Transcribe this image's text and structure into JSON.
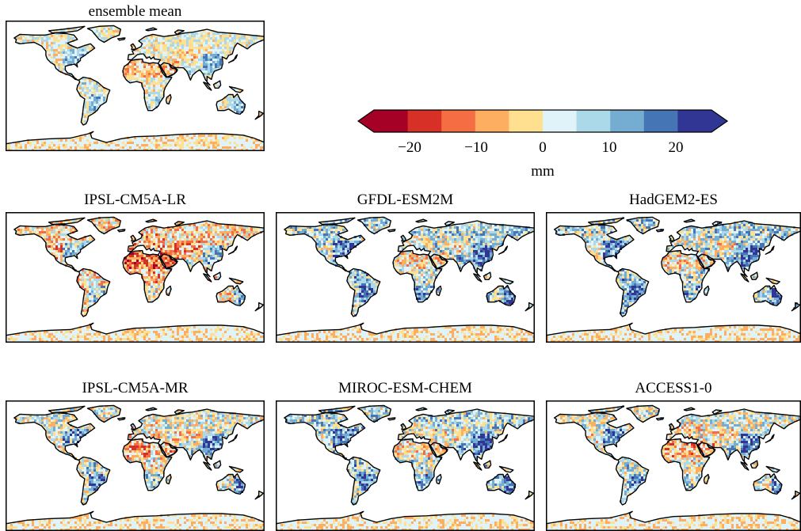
{
  "colorbar": {
    "unit": "mm",
    "ticks": [
      {
        "label": "−20",
        "value": -20
      },
      {
        "label": "−10",
        "value": -10
      },
      {
        "label": "0",
        "value": 0
      },
      {
        "label": "10",
        "value": 10
      },
      {
        "label": "20",
        "value": 20
      }
    ],
    "range": [
      -25,
      25
    ],
    "extend": "both",
    "colors": [
      "#a50026",
      "#d73027",
      "#f46d43",
      "#fdae61",
      "#fee090",
      "#e0f3f8",
      "#abd9e9",
      "#74add1",
      "#4575b4",
      "#313695"
    ],
    "extend_min_color": "#a50026",
    "extend_max_color": "#313695"
  },
  "panels": [
    {
      "title": "ensemble mean",
      "profile": "mean"
    },
    {
      "title": "IPSL-CM5A-LR",
      "profile": "dry"
    },
    {
      "title": "GFDL-ESM2M",
      "profile": "wet"
    },
    {
      "title": "HadGEM2-ES",
      "profile": "wet"
    },
    {
      "title": "IPSL-CM5A-MR",
      "profile": "mixed"
    },
    {
      "title": "MIROC-ESM-CHEM",
      "profile": "wet"
    },
    {
      "title": "ACCESS1-0",
      "profile": "mixed"
    }
  ],
  "palette": {
    "ocean": "#ffffff",
    "frame": "#000000",
    "coast": "#000000"
  }
}
